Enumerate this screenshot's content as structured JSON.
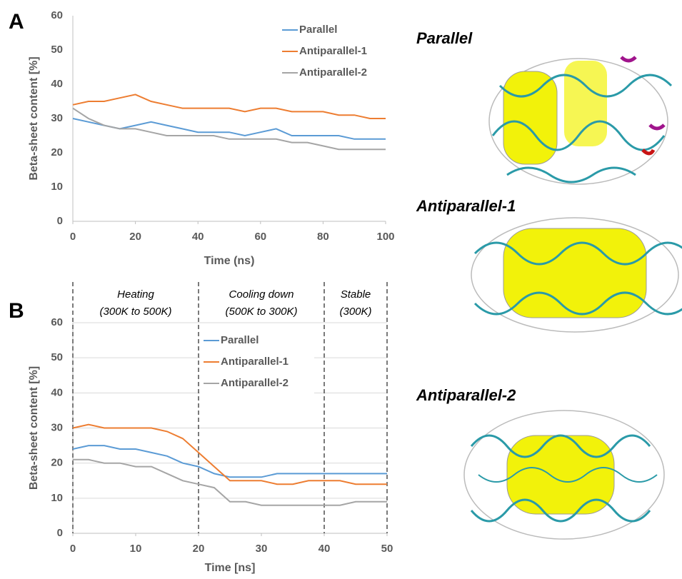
{
  "chart_data": [
    {
      "type": "line",
      "panel": "A",
      "x_label": "Time (ns)",
      "y_label": "Beta-sheet content [%]",
      "x": [
        0,
        5,
        10,
        15,
        20,
        25,
        30,
        35,
        40,
        45,
        50,
        55,
        60,
        65,
        70,
        75,
        80,
        85,
        90,
        95,
        100
      ],
      "series": [
        {
          "name": "Parallel",
          "color": "#5b9bd5",
          "values": [
            30,
            29,
            28,
            27,
            28,
            29,
            28,
            27,
            26,
            26,
            26,
            25,
            26,
            27,
            25,
            25,
            25,
            25,
            24,
            24,
            24
          ]
        },
        {
          "name": "Antiparallel-1",
          "color": "#ed7d31",
          "values": [
            34,
            35,
            35,
            36,
            37,
            35,
            34,
            33,
            33,
            33,
            33,
            32,
            33,
            33,
            32,
            32,
            32,
            31,
            31,
            30,
            30
          ]
        },
        {
          "name": "Antiparallel-2",
          "color": "#a5a5a5",
          "values": [
            33,
            30,
            28,
            27,
            27,
            26,
            25,
            25,
            25,
            25,
            24,
            24,
            24,
            24,
            23,
            23,
            22,
            21,
            21,
            21,
            21
          ]
        }
      ],
      "xlim": [
        0,
        100
      ],
      "xticks": [
        0,
        20,
        40,
        60,
        80,
        100
      ],
      "ylim": [
        0,
        60
      ],
      "yticks": [
        0,
        10,
        20,
        30,
        40,
        50,
        60
      ],
      "grid": false
    },
    {
      "type": "line",
      "panel": "B",
      "x_label": "Time [ns]",
      "y_label": "Beta-sheet content [%]",
      "x": [
        0,
        2.5,
        5,
        7.5,
        10,
        12.5,
        15,
        17.5,
        20,
        22.5,
        25,
        27.5,
        30,
        32.5,
        35,
        37.5,
        40,
        42.5,
        45,
        47.5,
        50
      ],
      "series": [
        {
          "name": "Parallel",
          "color": "#5b9bd5",
          "values": [
            24,
            25,
            25,
            24,
            24,
            23,
            22,
            20,
            19,
            17,
            16,
            16,
            16,
            17,
            17,
            17,
            17,
            17,
            17,
            17,
            17
          ]
        },
        {
          "name": "Antiparallel-1",
          "color": "#ed7d31",
          "values": [
            30,
            31,
            30,
            30,
            30,
            30,
            29,
            27,
            23,
            19,
            15,
            15,
            15,
            14,
            14,
            15,
            15,
            15,
            14,
            14,
            14
          ]
        },
        {
          "name": "Antiparallel-2",
          "color": "#a5a5a5",
          "values": [
            21,
            21,
            20,
            20,
            19,
            19,
            17,
            15,
            14,
            13,
            9,
            9,
            8,
            8,
            8,
            8,
            8,
            8,
            9,
            9,
            9
          ]
        }
      ],
      "xlim": [
        0,
        50
      ],
      "xticks": [
        0,
        10,
        20,
        30,
        40,
        50
      ],
      "ylim": [
        0,
        60
      ],
      "yticks": [
        0,
        10,
        20,
        30,
        40,
        50,
        60
      ],
      "grid": true,
      "dividers": [
        0,
        20,
        40,
        50
      ],
      "phases": [
        {
          "name": "Heating",
          "range": "(300K to 500K)"
        },
        {
          "name": "Cooling down",
          "range": "(500K to 300K)"
        },
        {
          "name": "Stable",
          "range": "(300K)"
        }
      ]
    }
  ],
  "structures": [
    {
      "title": "Parallel"
    },
    {
      "title": "Antiparallel-1"
    },
    {
      "title": "Antiparallel-2"
    }
  ]
}
